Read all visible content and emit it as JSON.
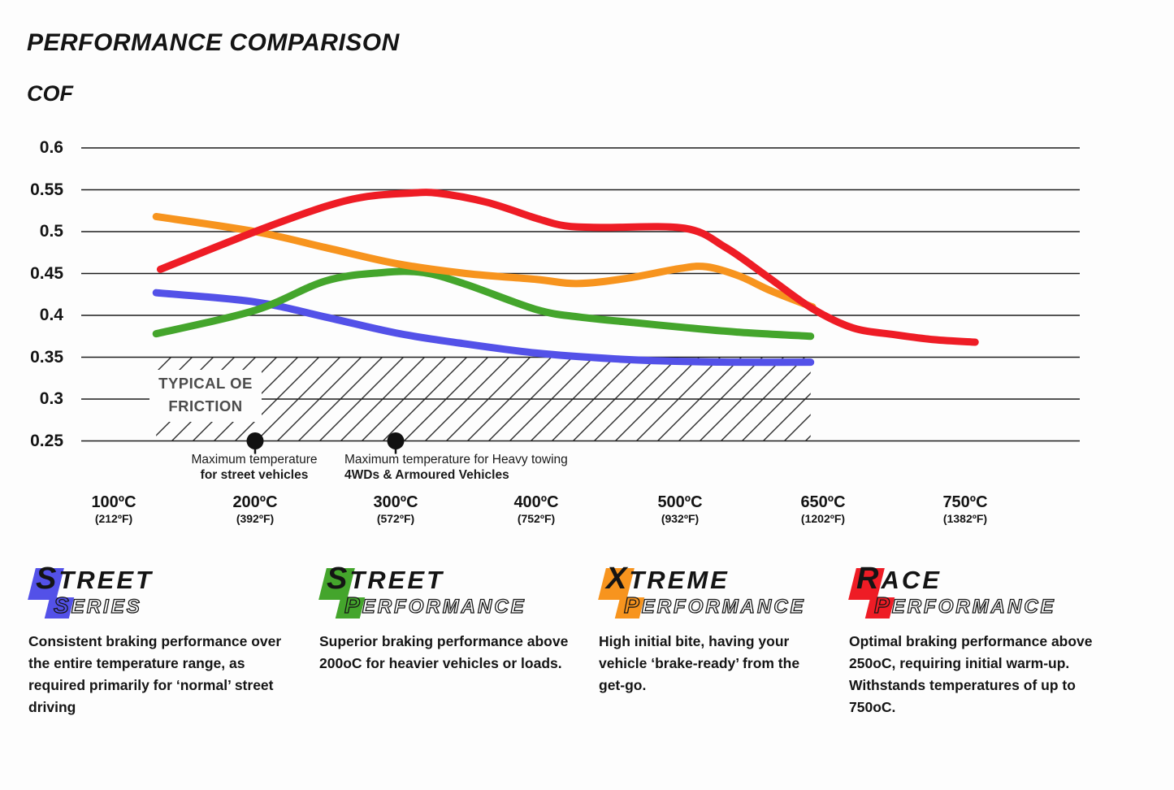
{
  "header": {
    "title": "PERFORMANCE COMPARISON",
    "y_axis_title": "COF"
  },
  "chart_data": {
    "type": "line",
    "title": "PERFORMANCE COMPARISON",
    "ylabel": "COF",
    "ylim": [
      0.25,
      0.6
    ],
    "grid": true,
    "y_ticks": [
      "0.6",
      "0.55",
      "0.5",
      "0.45",
      "0.4",
      "0.35",
      "0.3",
      "0.25"
    ],
    "x_tick_values": [
      100,
      200,
      300,
      400,
      500,
      650,
      750
    ],
    "x_ticks": [
      {
        "c": "100ºC",
        "f": "(212ºF)"
      },
      {
        "c": "200ºC",
        "f": "(392ºF)"
      },
      {
        "c": "300ºC",
        "f": "(572ºF)"
      },
      {
        "c": "400ºC",
        "f": "(752ºF)"
      },
      {
        "c": "500ºC",
        "f": "(932ºF)"
      },
      {
        "c": "650ºC",
        "f": "(1202ºF)"
      },
      {
        "c": "750ºC",
        "f": "(1382ºF)"
      }
    ],
    "series": [
      {
        "name": "Street Series",
        "color": "#5351e8",
        "points": [
          [
            130,
            0.427
          ],
          [
            200,
            0.416
          ],
          [
            250,
            0.398
          ],
          [
            300,
            0.379
          ],
          [
            345,
            0.367
          ],
          [
            400,
            0.355
          ],
          [
            455,
            0.348
          ],
          [
            500,
            0.345
          ],
          [
            560,
            0.344
          ],
          [
            637,
            0.344
          ]
        ]
      },
      {
        "name": "Street Performance",
        "color": "#44a52c",
        "points": [
          [
            130,
            0.378
          ],
          [
            200,
            0.406
          ],
          [
            250,
            0.441
          ],
          [
            290,
            0.451
          ],
          [
            320,
            0.451
          ],
          [
            350,
            0.437
          ],
          [
            400,
            0.407
          ],
          [
            430,
            0.398
          ],
          [
            470,
            0.391
          ],
          [
            500,
            0.386
          ],
          [
            560,
            0.38
          ],
          [
            637,
            0.375
          ]
        ]
      },
      {
        "name": "Xtreme Performance",
        "color": "#f7941e",
        "points": [
          [
            130,
            0.518
          ],
          [
            200,
            0.5
          ],
          [
            250,
            0.481
          ],
          [
            300,
            0.462
          ],
          [
            350,
            0.45
          ],
          [
            400,
            0.443
          ],
          [
            428,
            0.438
          ],
          [
            462,
            0.444
          ],
          [
            500,
            0.456
          ],
          [
            528,
            0.458
          ],
          [
            562,
            0.447
          ],
          [
            596,
            0.429
          ],
          [
            639,
            0.41
          ]
        ]
      },
      {
        "name": "Race Performance",
        "color": "#ee1c25",
        "points": [
          [
            133,
            0.455
          ],
          [
            200,
            0.5
          ],
          [
            250,
            0.53
          ],
          [
            280,
            0.542
          ],
          [
            310,
            0.546
          ],
          [
            330,
            0.546
          ],
          [
            365,
            0.535
          ],
          [
            400,
            0.516
          ],
          [
            420,
            0.507
          ],
          [
            445,
            0.505
          ],
          [
            505,
            0.504
          ],
          [
            548,
            0.481
          ],
          [
            592,
            0.446
          ],
          [
            639,
            0.408
          ],
          [
            671,
            0.385
          ],
          [
            700,
            0.377
          ],
          [
            728,
            0.371
          ],
          [
            757,
            0.368
          ]
        ]
      }
    ],
    "oe_band": {
      "label_line1": "TYPICAL OE",
      "label_line2": "FRICTION",
      "cof_min": 0.25,
      "cof_max": 0.35,
      "t_min": 130,
      "t_max": 637
    },
    "annotations": [
      {
        "t": 200,
        "cof": 0.25,
        "line1": "Maximum temperature",
        "line2": "for street vehicles"
      },
      {
        "t": 300,
        "cof": 0.25,
        "line1": "Maximum temperature for Heavy towing",
        "line2": "4WDs & Armoured Vehicles"
      }
    ]
  },
  "legend": {
    "items": [
      {
        "line1_initial": "S",
        "line1_rest": "TREET",
        "line2_initial": "S",
        "line2_rest": "ERIES",
        "color": "#5351e8",
        "description": "Consistent braking performance over the entire temperature range, as required primarily for ‘normal’ street driving"
      },
      {
        "line1_initial": "S",
        "line1_rest": "TREET",
        "line2_initial": "P",
        "line2_rest": "ERFORMANCE",
        "color": "#44a52c",
        "description": "Superior braking performance above 200oC for heavier vehicles or loads."
      },
      {
        "line1_initial": "X",
        "line1_rest": "TREME",
        "line2_initial": "P",
        "line2_rest": "ERFORMANCE",
        "color": "#f7941e",
        "description": "High initial bite, having your vehicle ‘brake-ready’ from the get-go."
      },
      {
        "line1_initial": "R",
        "line1_rest": "ACE",
        "line2_initial": "P",
        "line2_rest": "ERFORMANCE",
        "color": "#ee1c25",
        "description": "Optimal braking performance above 250oC, requiring initial warm-up. Withstands temperatures of up to 750oC."
      }
    ]
  }
}
